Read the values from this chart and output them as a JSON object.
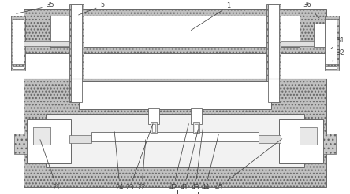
{
  "figsize": [
    4.44,
    2.47
  ],
  "dpi": 100,
  "bg_color": "#ffffff",
  "hatch_gray": "#c0c0c0",
  "light_gray": "#d2d2d2",
  "white": "#ffffff",
  "line_color": "#666666",
  "text_color": "#444444"
}
